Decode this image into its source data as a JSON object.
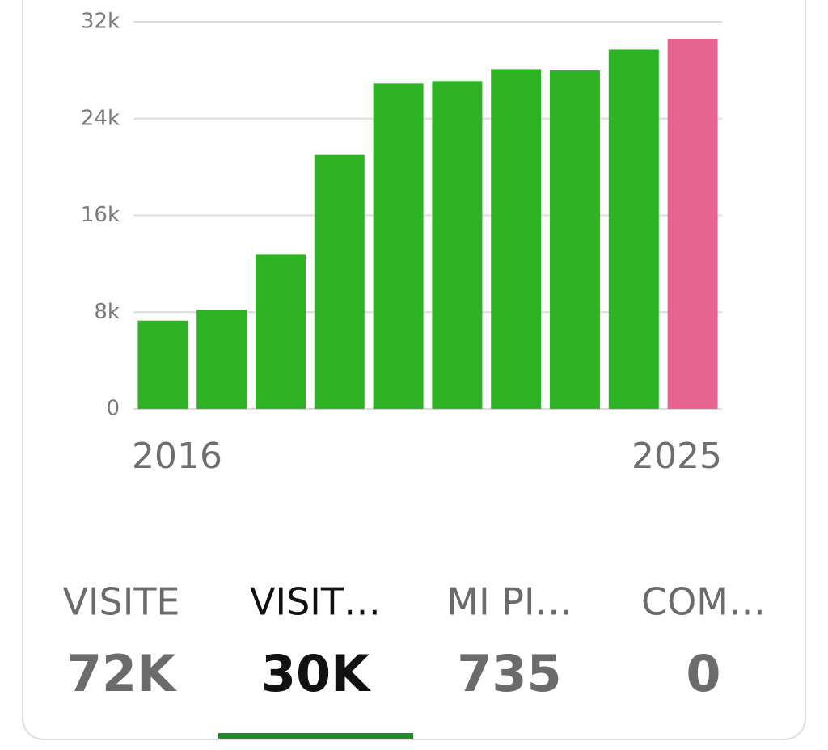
{
  "chart_data": {
    "type": "bar",
    "categories": [
      "2016",
      null,
      null,
      null,
      null,
      null,
      null,
      null,
      null,
      "2025"
    ],
    "values": [
      7300,
      8200,
      12800,
      21000,
      26900,
      27100,
      28100,
      28000,
      29700,
      30600
    ],
    "colors": [
      "#2db324",
      "#2db324",
      "#2db324",
      "#2db324",
      "#2db324",
      "#2db324",
      "#2db324",
      "#2db324",
      "#2db324",
      "#e86592"
    ],
    "ylim": [
      0,
      32000
    ],
    "yticks": [
      0,
      {
        "value": 8000,
        "label": "8k"
      },
      {
        "value": 16000,
        "label": "16k"
      },
      {
        "value": 24000,
        "label": "24k"
      },
      {
        "value": 32000,
        "label": "32k"
      }
    ],
    "grid": true
  },
  "tabs": [
    {
      "label": "VISITE",
      "value": "72K"
    },
    {
      "label": "VISIT…",
      "value": "30K"
    },
    {
      "label": "MI PI…",
      "value": "735"
    },
    {
      "label": "COM…",
      "value": "0"
    }
  ],
  "selected_tab": 1
}
